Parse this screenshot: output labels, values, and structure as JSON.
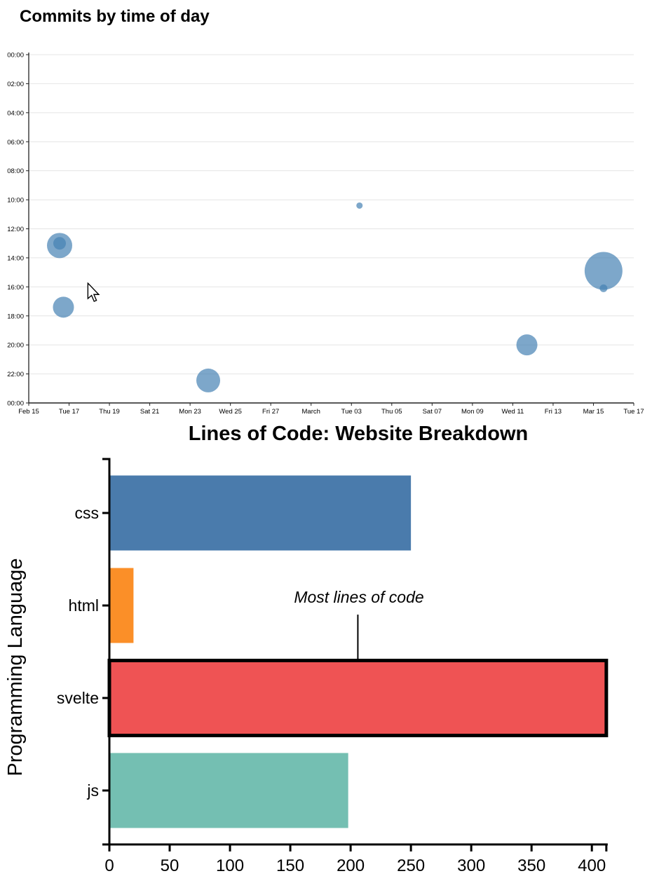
{
  "chart_data": [
    {
      "type": "scatter",
      "title": "Commits by time of day",
      "x_tick_labels": [
        "Feb 15",
        "Tue 17",
        "Thu 19",
        "Sat 21",
        "Mon 23",
        "Wed 25",
        "Fri 27",
        "March",
        "Tue 03",
        "Thu 05",
        "Sat 07",
        "Mon 09",
        "Wed 11",
        "Fri 13",
        "Mar 15",
        "Tue 17"
      ],
      "x_tick_days": [
        0,
        2,
        4,
        6,
        8,
        10,
        12,
        14,
        16,
        18,
        20,
        22,
        24,
        26,
        28,
        30
      ],
      "y_tick_labels": [
        "00:00",
        "02:00",
        "04:00",
        "06:00",
        "08:00",
        "10:00",
        "12:00",
        "14:00",
        "16:00",
        "18:00",
        "20:00",
        "22:00",
        "00:00"
      ],
      "y_tick_hours": [
        0,
        2,
        4,
        6,
        8,
        10,
        12,
        14,
        16,
        18,
        20,
        22,
        24
      ],
      "x_range_days": [
        0,
        30
      ],
      "y_range_hours": [
        0,
        24
      ],
      "grid": true,
      "point_color": "#4682B4",
      "point_opacity": 0.7,
      "points": [
        {
          "day": 1.53,
          "hour": 13.15,
          "r": 18,
          "label": "Feb 16 ~13:10"
        },
        {
          "day": 1.53,
          "hour": 13.0,
          "r": 9,
          "label": "Feb 16 ~13:00"
        },
        {
          "day": 1.72,
          "hour": 17.4,
          "r": 15,
          "label": "Feb 16 ~17:25"
        },
        {
          "day": 8.9,
          "hour": 22.45,
          "r": 17,
          "label": "Feb 24 ~22:30"
        },
        {
          "day": 16.4,
          "hour": 10.4,
          "r": 4.5,
          "label": "Mar 03 ~10:25"
        },
        {
          "day": 24.7,
          "hour": 20.0,
          "r": 15,
          "label": "Mar 11 ~20:00"
        },
        {
          "day": 28.5,
          "hour": 14.9,
          "r": 27,
          "label": "Mar 15 ~14:55"
        },
        {
          "day": 28.5,
          "hour": 16.1,
          "r": 5.5,
          "label": "Mar 15 ~16:05"
        }
      ]
    },
    {
      "type": "bar",
      "orientation": "horizontal",
      "title": "Lines of Code: Website Breakdown",
      "ylabel": "Programming Language",
      "categories": [
        "css",
        "html",
        "svelte",
        "js"
      ],
      "values": [
        250,
        20,
        412,
        198
      ],
      "bar_colors": [
        "#4A7BAC",
        "#FB8F28",
        "#EF5354",
        "#74BFB2"
      ],
      "x_ticks": [
        0,
        50,
        100,
        150,
        200,
        250,
        300,
        350,
        400
      ],
      "xlim": [
        0,
        412
      ],
      "grid": false,
      "legend": null,
      "highlight": {
        "category": "svelte",
        "border_color": "#000000",
        "border_width": 5
      },
      "annotation": {
        "text": "Most lines of code",
        "target_category": "svelte",
        "target_value": 206
      }
    }
  ],
  "cursor": {
    "present": true
  }
}
